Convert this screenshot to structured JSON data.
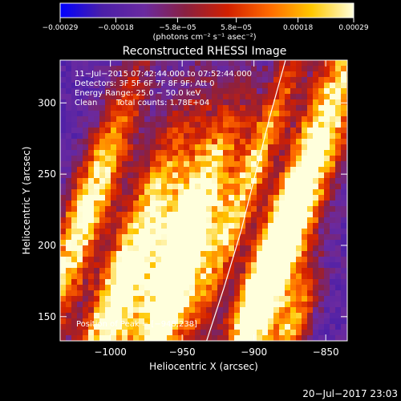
{
  "chart_data": {
    "type": "heatmap",
    "title": "Reconstructed RHESSI Image",
    "xlabel": "Heliocentric X (arcsec)",
    "ylabel": "Heliocentric Y (arcsec)",
    "xlim": [
      -1035,
      -835
    ],
    "ylim": [
      133,
      330
    ],
    "x_ticks": [
      -1000,
      -950,
      -900,
      -850
    ],
    "x_tick_labels": [
      "−1000",
      "−950",
      "−900",
      "−850"
    ],
    "y_ticks": [
      150,
      200,
      250,
      300
    ],
    "y_tick_labels": [
      "150",
      "200",
      "250",
      "300"
    ],
    "colorbar": {
      "min": -0.00029,
      "max": 0.00029,
      "ticks": [
        -0.00029,
        -0.00018,
        -5.8e-05,
        5.8e-05,
        0.00018,
        0.00029
      ],
      "tick_labels": [
        "−0.00029",
        "−0.00018",
        "−5.8e−05",
        "5.8e−05",
        "0.00018",
        "0.00029"
      ],
      "unit_label": "(photons cm⁻² s⁻¹ asec⁻²)",
      "colors": [
        "#0000ff",
        "#4b1fa8",
        "#6a2aa0",
        "#8a2040",
        "#d22000",
        "#ff6a00",
        "#ffc800",
        "#ffffdc"
      ]
    },
    "annotations": [
      "11−Jul−2015 07:42:44.000 to 07:52:44.000",
      "Detectors: 3F 5F 6F 7F 8F 9F; Att 0",
      "Energy Range: 25.0 − 50.0 keV",
      "Clean",
      "Total counts: 1.78E+04"
    ],
    "peak_label": "Position of Peak = [−948,238]",
    "limb": [
      [
        -933,
        133
      ],
      [
        -921,
        170
      ],
      [
        -909,
        210
      ],
      [
        -899,
        250
      ],
      [
        -889,
        290
      ],
      [
        -878,
        330
      ]
    ],
    "bands": [
      {
        "x": -990,
        "y": 175,
        "w": 26,
        "len": 170,
        "peak": 1.0
      },
      {
        "x": -944,
        "y": 212,
        "w": 28,
        "len": 130,
        "peak": 1.0
      },
      {
        "x": -1018,
        "y": 220,
        "w": 22,
        "len": 150,
        "peak": 0.9
      },
      {
        "x": -958,
        "y": 160,
        "w": 18,
        "len": 80,
        "peak": 0.75
      },
      {
        "x": -905,
        "y": 240,
        "w": 16,
        "len": 190,
        "peak": 0.65
      },
      {
        "x": -864,
        "y": 248,
        "w": 26,
        "len": 220,
        "peak": 0.95
      },
      {
        "x": -890,
        "y": 178,
        "w": 20,
        "len": 90,
        "peak": 0.9
      },
      {
        "x": -873,
        "y": 145,
        "w": 18,
        "len": 60,
        "peak": 0.6
      }
    ]
  },
  "footer": {
    "timestamp": "20−Jul−2017 23:03"
  }
}
